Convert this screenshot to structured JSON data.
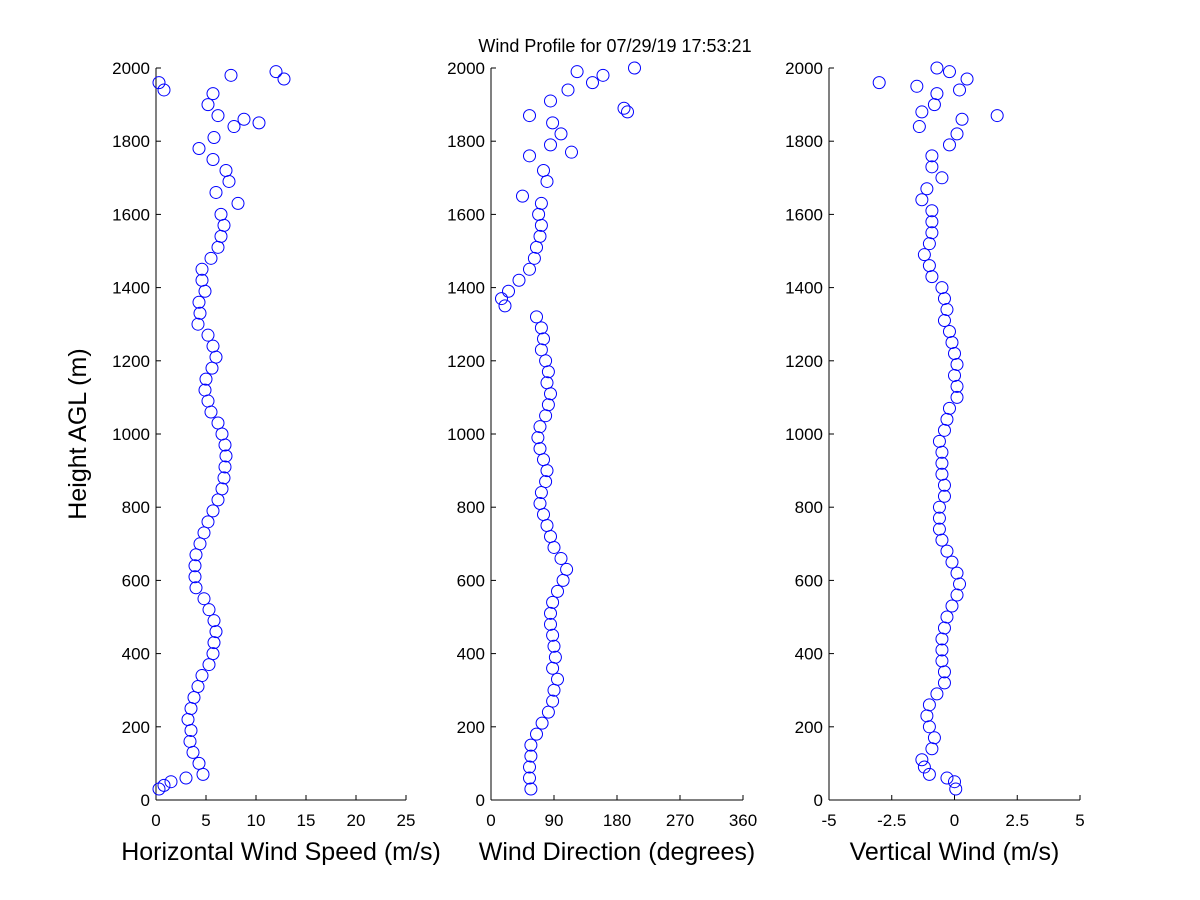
{
  "title": "Wind Profile for  07/29/19 17:53:21",
  "chart_data": [
    {
      "type": "scatter",
      "x_label": "Horizontal Wind Speed (m/s)",
      "y_label": "Height AGL (m)",
      "xlim": [
        0,
        25
      ],
      "xticks": [
        0,
        5,
        10,
        15,
        20,
        25
      ],
      "ylim": [
        0,
        2000
      ],
      "yticks": [
        0,
        200,
        400,
        600,
        800,
        1000,
        1200,
        1400,
        1600,
        1800,
        2000
      ],
      "series": [
        {
          "color": "#0000ff",
          "x": [
            0.3,
            0.8,
            1.5,
            3,
            4.7,
            4.3,
            3.7,
            3.4,
            3.5,
            3.2,
            3.5,
            3.8,
            4.2,
            4.6,
            5.3,
            5.7,
            5.8,
            6.0,
            5.8,
            5.3,
            4.8,
            4.0,
            3.9,
            3.9,
            4.0,
            4.4,
            4.8,
            5.2,
            5.7,
            6.2,
            6.6,
            6.8,
            6.9,
            7.0,
            6.9,
            6.6,
            6.2,
            5.5,
            5.2,
            4.9,
            5.0,
            5.6,
            6.0,
            5.7,
            5.2,
            4.2,
            4.4,
            4.3,
            4.9,
            4.6,
            4.6,
            5.5,
            6.2,
            6.5,
            6.8,
            6.5,
            8.2,
            6.0,
            7.3,
            7.0,
            5.7,
            4.3,
            5.8,
            7.8,
            6.2,
            5.2,
            5.7,
            0.3,
            12.0,
            7.5,
            12.8,
            0.8,
            10.3,
            8.8
          ],
          "y": [
            30,
            40,
            50,
            60,
            70,
            100,
            130,
            160,
            190,
            220,
            250,
            280,
            310,
            340,
            370,
            400,
            430,
            460,
            490,
            520,
            550,
            580,
            610,
            640,
            670,
            700,
            730,
            760,
            790,
            820,
            850,
            880,
            910,
            940,
            970,
            1000,
            1030,
            1060,
            1090,
            1120,
            1150,
            1180,
            1210,
            1240,
            1270,
            1300,
            1330,
            1360,
            1390,
            1420,
            1450,
            1480,
            1510,
            1540,
            1570,
            1600,
            1630,
            1660,
            1690,
            1720,
            1750,
            1780,
            1810,
            1840,
            1870,
            1900,
            1930,
            1960,
            1990,
            1980,
            1970,
            1940,
            1850,
            1860
          ]
        }
      ]
    },
    {
      "type": "scatter",
      "x_label": "Wind Direction (degrees)",
      "xlim": [
        0,
        360
      ],
      "xticks": [
        0,
        90,
        180,
        270,
        360
      ],
      "ylim": [
        0,
        2000
      ],
      "yticks": [
        0,
        200,
        400,
        600,
        800,
        1000,
        1200,
        1400,
        1600,
        1800,
        2000
      ],
      "series": [
        {
          "color": "#0000ff",
          "x": [
            57,
            55,
            55,
            57,
            57,
            65,
            73,
            82,
            88,
            90,
            95,
            88,
            92,
            90,
            88,
            85,
            85,
            88,
            95,
            103,
            108,
            100,
            90,
            85,
            80,
            75,
            70,
            72,
            78,
            80,
            75,
            70,
            67,
            70,
            78,
            82,
            85,
            80,
            82,
            78,
            72,
            75,
            72,
            65,
            20,
            15,
            25,
            40,
            55,
            62,
            65,
            70,
            72,
            68,
            72,
            45,
            80,
            75,
            55,
            85,
            100,
            88,
            195,
            85,
            110,
            145,
            160,
            205,
            123,
            115,
            55,
            190
          ],
          "y": [
            30,
            60,
            90,
            120,
            150,
            180,
            210,
            240,
            270,
            300,
            330,
            360,
            390,
            420,
            450,
            480,
            510,
            540,
            570,
            600,
            630,
            660,
            690,
            720,
            750,
            780,
            810,
            840,
            870,
            900,
            930,
            960,
            990,
            1020,
            1050,
            1080,
            1110,
            1140,
            1170,
            1200,
            1230,
            1260,
            1290,
            1320,
            1350,
            1370,
            1390,
            1420,
            1450,
            1480,
            1510,
            1540,
            1570,
            1600,
            1630,
            1650,
            1690,
            1720,
            1760,
            1790,
            1820,
            1850,
            1880,
            1910,
            1940,
            1960,
            1980,
            2000,
            1990,
            1770,
            1870,
            1890
          ]
        }
      ]
    },
    {
      "type": "scatter",
      "x_label": "Vertical Wind (m/s)",
      "xlim": [
        -5,
        5
      ],
      "xticks": [
        -5,
        -2.5,
        0,
        2.5,
        5
      ],
      "ylim": [
        0,
        2000
      ],
      "yticks": [
        0,
        200,
        400,
        600,
        800,
        1000,
        1200,
        1400,
        1600,
        1800,
        2000
      ],
      "series": [
        {
          "color": "#0000ff",
          "x": [
            0.05,
            0,
            -0.3,
            -1.0,
            -1.2,
            -1.3,
            -0.9,
            -0.8,
            -1.0,
            -1.1,
            -1.0,
            -0.7,
            -0.4,
            -0.4,
            -0.5,
            -0.5,
            -0.5,
            -0.4,
            -0.3,
            -0.1,
            0.1,
            0.2,
            0.1,
            -0.1,
            -0.3,
            -0.5,
            -0.6,
            -0.6,
            -0.6,
            -0.4,
            -0.4,
            -0.5,
            -0.5,
            -0.5,
            -0.6,
            -0.4,
            -0.3,
            -0.2,
            0.1,
            0.1,
            0.0,
            0.1,
            0.0,
            -0.1,
            -0.2,
            -0.4,
            -0.3,
            -0.4,
            -0.5,
            -0.9,
            -1.0,
            -1.2,
            -1.0,
            -0.9,
            -0.9,
            -0.9,
            -1.3,
            -1.1,
            -0.5,
            -0.9,
            -0.9,
            -0.2,
            0.1,
            -1.4,
            1.7,
            -1.3,
            -0.8,
            -0.7,
            -1.5,
            -3.0,
            0.5,
            -0.2,
            -0.7,
            0.2,
            0.3
          ],
          "y": [
            30,
            50,
            60,
            70,
            90,
            110,
            140,
            170,
            200,
            230,
            260,
            290,
            320,
            350,
            380,
            410,
            440,
            470,
            500,
            530,
            560,
            590,
            620,
            650,
            680,
            710,
            740,
            770,
            800,
            830,
            860,
            890,
            920,
            950,
            980,
            1010,
            1040,
            1070,
            1100,
            1130,
            1160,
            1190,
            1220,
            1250,
            1280,
            1310,
            1340,
            1370,
            1400,
            1430,
            1460,
            1490,
            1520,
            1550,
            1580,
            1610,
            1640,
            1670,
            1700,
            1730,
            1760,
            1790,
            1820,
            1840,
            1870,
            1880,
            1900,
            1930,
            1950,
            1960,
            1970,
            1990,
            2000,
            1940,
            1860
          ]
        }
      ]
    }
  ]
}
